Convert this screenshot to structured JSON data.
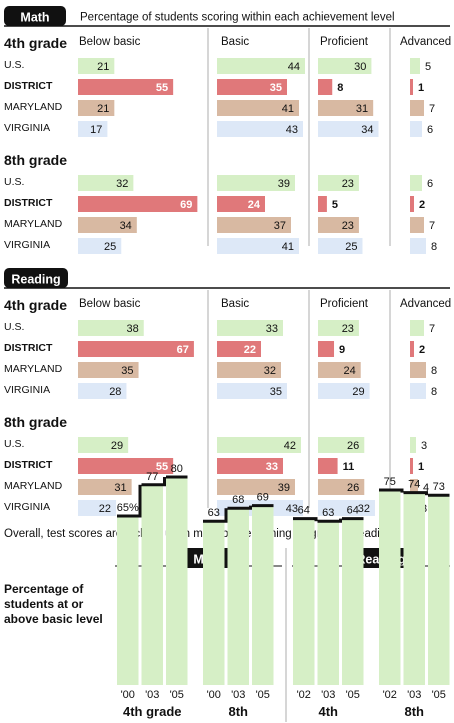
{
  "header_subtitle": "Percentage of students scoring within each achievement level",
  "column_headers": [
    "Below basic",
    "Basic",
    "Proficient",
    "Advanced"
  ],
  "colors": {
    "us": "#d6efc6",
    "district": "#e0787a",
    "maryland": "#d8b9a2",
    "virginia": "#dde8f7",
    "tab": "#111111",
    "trend_fill": "#d6efc6",
    "trend_line": "#111111"
  },
  "chart_data": [
    {
      "type": "bar",
      "subject": "Math",
      "panels": [
        {
          "title": "4th grade",
          "rows": [
            {
              "name": "U.S.",
              "key": "us",
              "values": [
                21,
                44,
                30,
                5
              ]
            },
            {
              "name": "DISTRICT",
              "key": "district",
              "values": [
                55,
                35,
                8,
                1
              ]
            },
            {
              "name": "MARYLAND",
              "key": "maryland",
              "values": [
                21,
                41,
                31,
                7
              ]
            },
            {
              "name": "VIRGINIA",
              "key": "virginia",
              "values": [
                17,
                43,
                34,
                6
              ]
            }
          ]
        },
        {
          "title": "8th grade",
          "rows": [
            {
              "name": "U.S.",
              "key": "us",
              "values": [
                32,
                39,
                23,
                6
              ]
            },
            {
              "name": "DISTRICT",
              "key": "district",
              "values": [
                69,
                24,
                5,
                2
              ]
            },
            {
              "name": "MARYLAND",
              "key": "maryland",
              "values": [
                34,
                37,
                23,
                7
              ]
            },
            {
              "name": "VIRGINIA",
              "key": "virginia",
              "values": [
                25,
                41,
                25,
                8
              ]
            }
          ]
        }
      ]
    },
    {
      "type": "bar",
      "subject": "Reading",
      "panels": [
        {
          "title": "4th grade",
          "rows": [
            {
              "name": "U.S.",
              "key": "us",
              "values": [
                38,
                33,
                23,
                7
              ]
            },
            {
              "name": "DISTRICT",
              "key": "district",
              "values": [
                67,
                22,
                9,
                2
              ]
            },
            {
              "name": "MARYLAND",
              "key": "maryland",
              "values": [
                35,
                32,
                24,
                8
              ]
            },
            {
              "name": "VIRGINIA",
              "key": "virginia",
              "values": [
                28,
                35,
                29,
                8
              ]
            }
          ]
        },
        {
          "title": "8th grade",
          "rows": [
            {
              "name": "U.S.",
              "key": "us",
              "values": [
                29,
                42,
                26,
                3
              ]
            },
            {
              "name": "DISTRICT",
              "key": "district",
              "values": [
                55,
                33,
                11,
                1
              ]
            },
            {
              "name": "MARYLAND",
              "key": "maryland",
              "values": [
                31,
                39,
                26,
                4
              ]
            },
            {
              "name": "VIRGINIA",
              "key": "virginia",
              "values": [
                22,
                43,
                32,
                3
              ]
            }
          ]
        }
      ]
    },
    {
      "type": "bar",
      "caption": "Overall, test scores are inching up in math but remaining stagnant in reading.",
      "ylabel": "Percentage of students at or above basic level",
      "groups": [
        {
          "subject": "Math",
          "grade": "4th grade",
          "x": [
            "'00",
            "'03",
            "'05"
          ],
          "values": [
            65,
            77,
            80
          ],
          "labels": [
            "65%",
            "77",
            "80"
          ]
        },
        {
          "subject": "Math",
          "grade": "8th",
          "x": [
            "'00",
            "'03",
            "'05"
          ],
          "values": [
            63,
            68,
            69
          ],
          "labels": [
            "63",
            "68",
            "69"
          ]
        },
        {
          "subject": "Reading",
          "grade": "4th",
          "x": [
            "'02",
            "'03",
            "'05"
          ],
          "values": [
            64,
            63,
            64
          ],
          "labels": [
            "64",
            "63",
            "64"
          ]
        },
        {
          "subject": "Reading",
          "grade": "8th",
          "x": [
            "'02",
            "'03",
            "'05"
          ],
          "values": [
            75,
            74,
            73
          ],
          "labels": [
            "75",
            "74",
            "73"
          ]
        }
      ]
    }
  ]
}
